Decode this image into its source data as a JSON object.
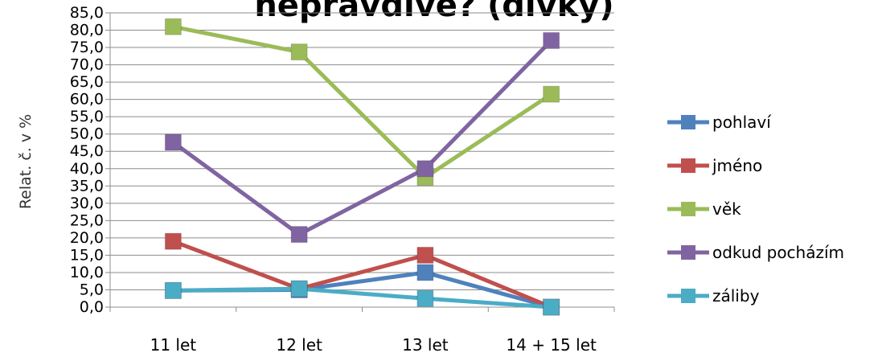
{
  "chart_data": {
    "type": "line",
    "title": "nepravdivé? (dívky)",
    "xlabel": "",
    "ylabel": "Relat. č. v %",
    "categories": [
      "11 let",
      "12 let",
      "13 let",
      "14 + 15 let"
    ],
    "ylim": [
      0,
      85
    ],
    "ytick_step": 5,
    "ytick_labels": [
      "0,0",
      "5,0",
      "10,0",
      "15,0",
      "20,0",
      "25,0",
      "30,0",
      "35,0",
      "40,0",
      "45,0",
      "50,0",
      "55,0",
      "60,0",
      "65,0",
      "70,0",
      "75,0",
      "80,0",
      "85,0"
    ],
    "grid": true,
    "legend_position": "right",
    "series": [
      {
        "name": "pohlaví",
        "color": "#4F81BD",
        "values": [
          4.8,
          5.0,
          10.0,
          0.0
        ]
      },
      {
        "name": "jméno",
        "color": "#C0504D",
        "values": [
          19.0,
          5.3,
          15.0,
          0.0
        ]
      },
      {
        "name": "věk",
        "color": "#9BBB59",
        "values": [
          81.0,
          73.7,
          37.5,
          61.5
        ]
      },
      {
        "name": "odkud pocházím",
        "color": "#8064A2",
        "values": [
          47.6,
          21.0,
          40.0,
          77.0
        ]
      },
      {
        "name": "záliby",
        "color": "#4BACC6",
        "values": [
          4.8,
          5.3,
          2.5,
          0.0
        ]
      }
    ]
  }
}
